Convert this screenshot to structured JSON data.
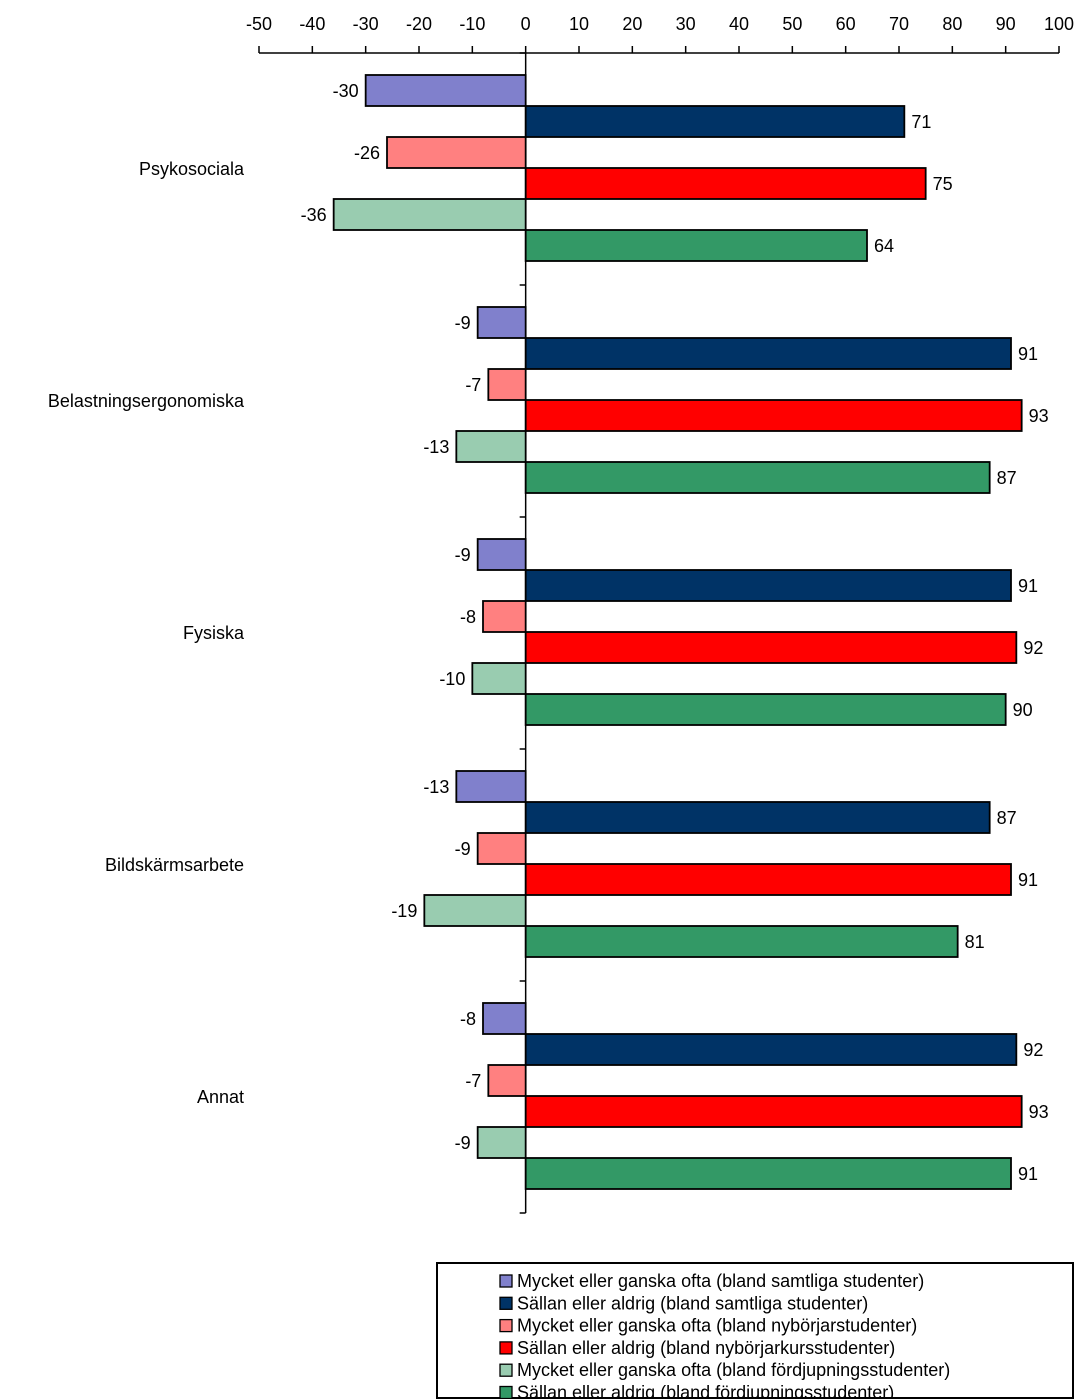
{
  "chart_data": {
    "type": "bar",
    "orientation": "horizontal",
    "title": "",
    "xlabel": "",
    "ylabel": "",
    "xlim": [
      -50,
      100
    ],
    "x_ticks": [
      "-50",
      "-40",
      "-30",
      "-20",
      "-10",
      "0",
      "10",
      "20",
      "30",
      "40",
      "50",
      "60",
      "70",
      "80",
      "90",
      "100"
    ],
    "categories": [
      "Psykosociala",
      "Belastningsergonomiska",
      "Fysiska",
      "Bildskärmsarbete",
      "Annat"
    ],
    "series": [
      {
        "name": "Mycket eller ganska ofta (bland samtliga studenter)",
        "color": "#8080CC",
        "values": [
          -30,
          -9,
          -9,
          -13,
          -8
        ]
      },
      {
        "name": "Sällan eller aldrig (bland samtliga studenter)",
        "color": "#003366",
        "values": [
          71,
          91,
          91,
          87,
          92
        ]
      },
      {
        "name": "Mycket eller ganska ofta (bland nybörjarstudenter)",
        "color": "#FF8080",
        "values": [
          -26,
          -7,
          -8,
          -9,
          -7
        ]
      },
      {
        "name": "Sällan eller aldrig (bland nybörjarkursstudenter)",
        "color": "#FF0000",
        "values": [
          75,
          93,
          92,
          91,
          93
        ]
      },
      {
        "name": "Mycket eller ganska ofta (bland fördjupningsstudenter)",
        "color": "#99CCB0",
        "values": [
          -36,
          -13,
          -10,
          -19,
          -9
        ]
      },
      {
        "name": "Sällan eller aldrig (bland fördjupningsstudenter)",
        "color": "#339966",
        "values": [
          64,
          87,
          90,
          81,
          91
        ]
      }
    ],
    "grid": false,
    "legend_position": "bottom-right",
    "axis_position": "top"
  }
}
